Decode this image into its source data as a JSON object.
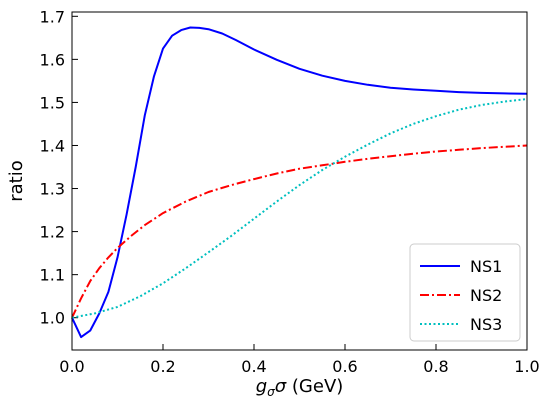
{
  "chart_data": {
    "type": "line",
    "title": "",
    "xlabel_parts": {
      "g": "g",
      "sub": "σ",
      "sigma": "σ",
      "unit": " (GeV)"
    },
    "ylabel": "ratio",
    "xlim": [
      0.0,
      1.0
    ],
    "ylim": [
      0.925,
      1.71
    ],
    "xticks": [
      0.0,
      0.2,
      0.4,
      0.6,
      0.8,
      1.0
    ],
    "xtick_labels": [
      "0.0",
      "0.2",
      "0.4",
      "0.6",
      "0.8",
      "1.0"
    ],
    "yticks": [
      1.0,
      1.1,
      1.2,
      1.3,
      1.4,
      1.5,
      1.6,
      1.7
    ],
    "ytick_labels": [
      "1.0",
      "1.1",
      "1.2",
      "1.3",
      "1.4",
      "1.5",
      "1.6",
      "1.7"
    ],
    "grid": false,
    "legend_position": "bottom-right",
    "series": [
      {
        "name": "NS1",
        "color": "#0000ff",
        "style": "solid",
        "x": [
          0.0,
          0.02,
          0.04,
          0.06,
          0.08,
          0.1,
          0.12,
          0.14,
          0.16,
          0.18,
          0.2,
          0.22,
          0.24,
          0.26,
          0.28,
          0.3,
          0.33,
          0.36,
          0.4,
          0.45,
          0.5,
          0.55,
          0.6,
          0.65,
          0.7,
          0.75,
          0.8,
          0.85,
          0.9,
          0.95,
          1.0
        ],
        "y": [
          1.0,
          0.955,
          0.97,
          1.01,
          1.06,
          1.14,
          1.24,
          1.35,
          1.47,
          1.56,
          1.625,
          1.655,
          1.668,
          1.674,
          1.673,
          1.67,
          1.66,
          1.645,
          1.623,
          1.599,
          1.578,
          1.562,
          1.55,
          1.541,
          1.534,
          1.53,
          1.527,
          1.524,
          1.522,
          1.521,
          1.52
        ]
      },
      {
        "name": "NS2",
        "color": "#ff0000",
        "style": "dashdot",
        "x": [
          0.0,
          0.02,
          0.04,
          0.06,
          0.08,
          0.1,
          0.13,
          0.16,
          0.2,
          0.25,
          0.3,
          0.35,
          0.4,
          0.45,
          0.5,
          0.55,
          0.6,
          0.65,
          0.7,
          0.75,
          0.8,
          0.85,
          0.9,
          0.95,
          1.0
        ],
        "y": [
          1.0,
          1.045,
          1.085,
          1.115,
          1.14,
          1.162,
          1.19,
          1.215,
          1.243,
          1.27,
          1.292,
          1.308,
          1.322,
          1.335,
          1.346,
          1.354,
          1.362,
          1.369,
          1.375,
          1.381,
          1.386,
          1.39,
          1.394,
          1.397,
          1.4
        ]
      },
      {
        "name": "NS3",
        "color": "#00bfbf",
        "style": "dotted",
        "x": [
          0.0,
          0.05,
          0.1,
          0.15,
          0.2,
          0.25,
          0.3,
          0.35,
          0.4,
          0.45,
          0.5,
          0.55,
          0.6,
          0.65,
          0.7,
          0.75,
          0.8,
          0.85,
          0.9,
          0.95,
          1.0
        ],
        "y": [
          1.0,
          1.01,
          1.025,
          1.05,
          1.08,
          1.115,
          1.152,
          1.19,
          1.23,
          1.27,
          1.308,
          1.343,
          1.374,
          1.402,
          1.428,
          1.45,
          1.468,
          1.483,
          1.494,
          1.502,
          1.508
        ]
      }
    ]
  }
}
